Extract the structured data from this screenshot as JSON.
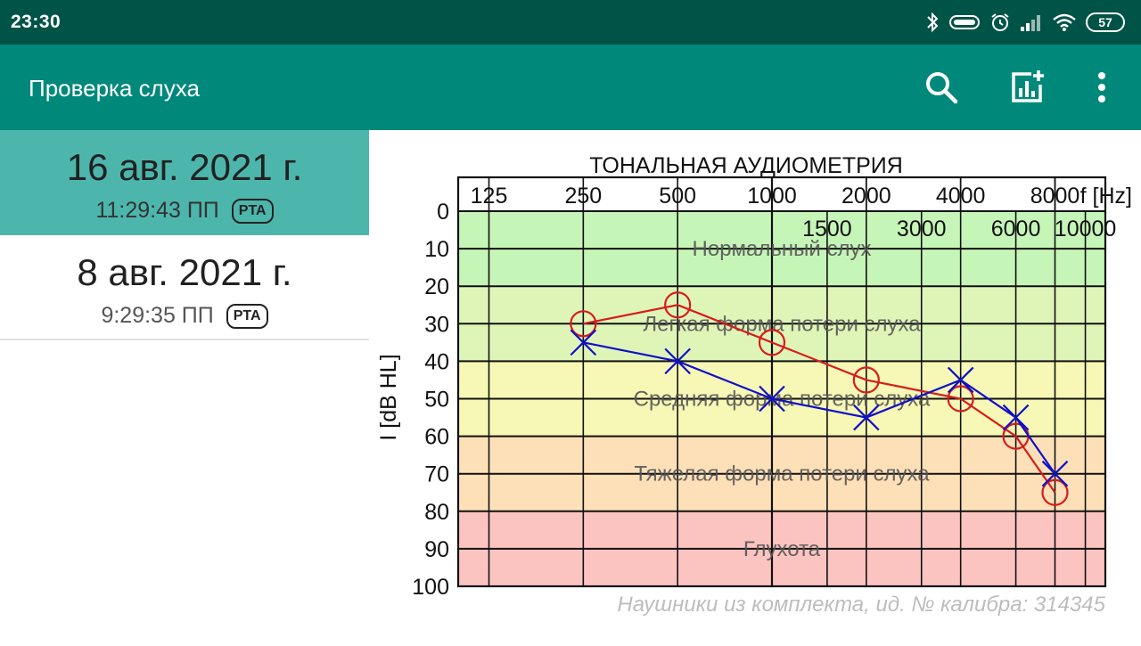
{
  "status_bar": {
    "time": "23:30",
    "battery": "57"
  },
  "app_bar": {
    "title": "Проверка слуха",
    "icons": [
      "search-icon",
      "add-chart-icon",
      "more-vert-icon"
    ]
  },
  "sessions": [
    {
      "date": "16 авг. 2021 г.",
      "time": "11:29:43 ПП",
      "badge": "PTA",
      "selected": true
    },
    {
      "date": "8 авг. 2021 г.",
      "time": "9:29:35 ПП",
      "badge": "PTA",
      "selected": false
    }
  ],
  "chart_data": {
    "type": "line",
    "title": "ТОНАЛЬНАЯ АУДИОМЕТРИЯ",
    "xlabel": "f [Hz]",
    "ylabel": "I [dB HL]",
    "x_scale": "log",
    "x_ticks_top": [
      125,
      250,
      500,
      1000,
      2000,
      4000,
      8000
    ],
    "x_ticks_mid": [
      1500,
      3000,
      6000,
      10000
    ],
    "y_ticks": [
      0,
      10,
      20,
      30,
      40,
      50,
      60,
      70,
      80,
      90,
      100
    ],
    "ylim": [
      0,
      100
    ],
    "y_inverted": true,
    "zones": [
      {
        "label": "Нормальный слух",
        "from": 0,
        "to": 20,
        "color": "#c6f5b8"
      },
      {
        "label": "Легкая форма потери слуха",
        "from": 20,
        "to": 40,
        "color": "#dff5b8"
      },
      {
        "label": "Средняя форма потери слуха",
        "from": 40,
        "to": 60,
        "color": "#f7f7b6"
      },
      {
        "label": "Тяжелая форма потери слуха",
        "from": 60,
        "to": 80,
        "color": "#fde0b8"
      },
      {
        "label": "Глухота",
        "from": 80,
        "to": 100,
        "color": "#fcc4c0"
      }
    ],
    "series": [
      {
        "marker": "circle",
        "color": "#d81b1b",
        "x": [
          250,
          500,
          1000,
          2000,
          4000,
          6000,
          8000
        ],
        "y": [
          30,
          25,
          35,
          45,
          50,
          60,
          75
        ]
      },
      {
        "marker": "cross",
        "color": "#1010c8",
        "x": [
          250,
          500,
          1000,
          2000,
          4000,
          6000,
          8000
        ],
        "y": [
          35,
          40,
          50,
          55,
          45,
          55,
          70
        ]
      }
    ],
    "footnote": "Наушники из комплекта, ид. № калибра: 314345"
  }
}
